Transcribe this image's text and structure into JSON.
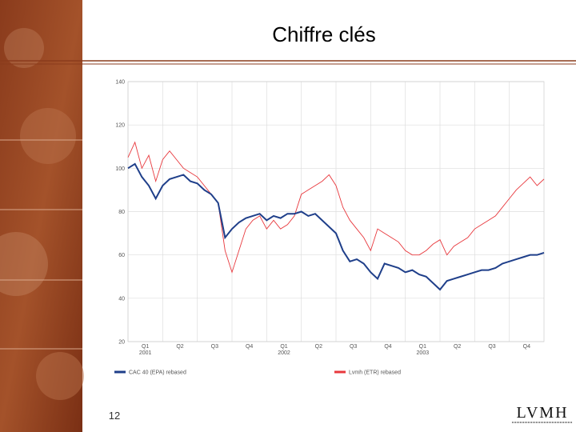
{
  "page_number": "12",
  "logo": "LVMH",
  "chart_data": {
    "type": "line",
    "title": "Chiffre clés",
    "x": [
      0,
      0.2,
      0.4,
      0.6,
      0.8,
      1,
      1.2,
      1.4,
      1.6,
      1.8,
      2,
      2.2,
      2.4,
      2.6,
      2.8,
      3,
      3.2,
      3.4,
      3.6,
      3.8,
      4,
      4.2,
      4.4,
      4.6,
      4.8,
      5,
      5.2,
      5.4,
      5.6,
      5.8,
      6,
      6.2,
      6.4,
      6.6,
      6.8,
      7,
      7.2,
      7.4,
      7.6,
      7.8,
      8,
      8.2,
      8.4,
      8.6,
      8.8,
      9,
      9.2,
      9.4,
      9.6,
      9.8,
      10,
      10.2,
      10.4,
      10.6,
      10.8,
      11,
      11.2,
      11.4,
      11.6,
      11.8,
      12
    ],
    "series": [
      {
        "name": "CAC 40 (EPA) rebased",
        "color": "#1f3f8a",
        "values": [
          100,
          102,
          96,
          92,
          86,
          92,
          95,
          96,
          97,
          94,
          93,
          90,
          88,
          84,
          68,
          72,
          75,
          77,
          78,
          79,
          76,
          78,
          77,
          79,
          79,
          80,
          78,
          79,
          76,
          73,
          70,
          62,
          57,
          58,
          56,
          52,
          49,
          56,
          55,
          54,
          52,
          53,
          51,
          50,
          47,
          44,
          48,
          49,
          50,
          51,
          52,
          53,
          53,
          54,
          56,
          57,
          58,
          59,
          60,
          60,
          61
        ]
      },
      {
        "name": "Lvmh (ETR) rebased",
        "color": "#e8383d",
        "values": [
          105,
          112,
          100,
          106,
          94,
          104,
          108,
          104,
          100,
          98,
          96,
          92,
          88,
          84,
          62,
          52,
          62,
          72,
          76,
          78,
          72,
          76,
          72,
          74,
          78,
          88,
          90,
          92,
          94,
          97,
          92,
          82,
          76,
          72,
          68,
          62,
          72,
          70,
          68,
          66,
          62,
          60,
          60,
          62,
          65,
          67,
          60,
          64,
          66,
          68,
          72,
          74,
          76,
          78,
          82,
          86,
          90,
          93,
          96,
          92,
          95
        ]
      }
    ],
    "xlim": [
      0,
      12
    ],
    "xticks": [
      {
        "value": 0.5,
        "label": "Q1"
      },
      {
        "value": 1.5,
        "label": "Q2"
      },
      {
        "value": 2.5,
        "label": "Q3"
      },
      {
        "value": 3.5,
        "label": "Q4"
      },
      {
        "value": 4.5,
        "label": "Q1"
      },
      {
        "value": 5.5,
        "label": "Q2"
      },
      {
        "value": 6.5,
        "label": "Q3"
      },
      {
        "value": 7.5,
        "label": "Q4"
      },
      {
        "value": 8.5,
        "label": "Q1"
      },
      {
        "value": 9.5,
        "label": "Q2"
      },
      {
        "value": 10.5,
        "label": "Q3"
      },
      {
        "value": 11.5,
        "label": "Q4"
      }
    ],
    "xtick_years": [
      {
        "value": 0.5,
        "label": "2001"
      },
      {
        "value": 4.5,
        "label": "2002"
      },
      {
        "value": 8.5,
        "label": "2003"
      }
    ],
    "ylim": [
      20,
      140
    ],
    "yticks": [
      20,
      40,
      60,
      80,
      100,
      120,
      140
    ],
    "grid": true
  }
}
